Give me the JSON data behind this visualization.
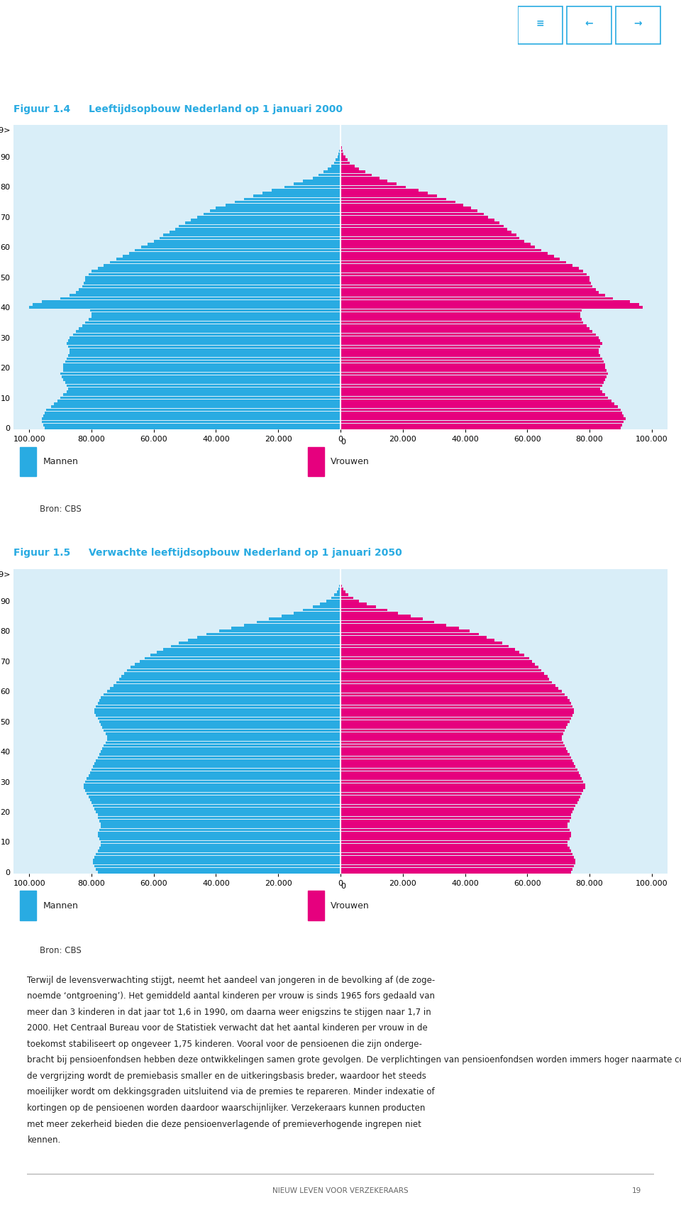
{
  "fig1_title_label": "Figuur 1.4",
  "fig1_title_text": "Leeftijdsopbouw Nederland op 1 januari 2000",
  "fig2_title_label": "Figuur 1.5",
  "fig2_title_text": "Verwachte leeftijdsopbouw Nederland op 1 januari 2050",
  "legend_mannen": "Mannen",
  "legend_vrouwen": "Vrouwen",
  "source_text": "Bron: CBS",
  "color_mannen": "#29ABE2",
  "color_vrouwen": "#E6007E",
  "color_bg": "#D9EEF8",
  "color_title": "#29ABE2",
  "xmax": 105000,
  "yticks": [
    0,
    10,
    20,
    30,
    40,
    50,
    60,
    70,
    80,
    90,
    99
  ],
  "ytick_label_99": "99>",
  "ages": [
    0,
    1,
    2,
    3,
    4,
    5,
    6,
    7,
    8,
    9,
    10,
    11,
    12,
    13,
    14,
    15,
    16,
    17,
    18,
    19,
    20,
    21,
    22,
    23,
    24,
    25,
    26,
    27,
    28,
    29,
    30,
    31,
    32,
    33,
    34,
    35,
    36,
    37,
    38,
    39,
    40,
    41,
    42,
    43,
    44,
    45,
    46,
    47,
    48,
    49,
    50,
    51,
    52,
    53,
    54,
    55,
    56,
    57,
    58,
    59,
    60,
    61,
    62,
    63,
    64,
    65,
    66,
    67,
    68,
    69,
    70,
    71,
    72,
    73,
    74,
    75,
    76,
    77,
    78,
    79,
    80,
    81,
    82,
    83,
    84,
    85,
    86,
    87,
    88,
    89,
    90,
    91,
    92,
    93,
    94,
    95,
    96,
    97,
    98,
    99
  ],
  "men_2000": [
    95000,
    95500,
    96000,
    96000,
    95500,
    95000,
    94500,
    93000,
    92000,
    91000,
    90000,
    89000,
    88000,
    87500,
    88000,
    88500,
    89000,
    89500,
    90000,
    89000,
    89000,
    89000,
    88500,
    88000,
    87500,
    87000,
    87000,
    87500,
    88000,
    87500,
    87000,
    86000,
    85000,
    84000,
    83000,
    82000,
    81000,
    80000,
    80000,
    80500,
    100000,
    99000,
    96000,
    90000,
    87000,
    85000,
    84000,
    83000,
    82500,
    82000,
    82000,
    81000,
    80000,
    78000,
    76000,
    74000,
    72000,
    70000,
    68000,
    66000,
    64000,
    62000,
    60000,
    58000,
    57000,
    55000,
    53000,
    52000,
    50000,
    48000,
    46000,
    44000,
    42000,
    40000,
    37000,
    34000,
    31000,
    28000,
    25000,
    22000,
    18000,
    15000,
    12000,
    9000,
    7000,
    5500,
    4000,
    3000,
    2000,
    1500,
    1000,
    700,
    500,
    300,
    200,
    100,
    60,
    30,
    15,
    5
  ],
  "women_2000": [
    90000,
    90500,
    91000,
    91500,
    91000,
    90500,
    90000,
    89000,
    88000,
    87000,
    86000,
    85000,
    84000,
    83500,
    84000,
    84500,
    85000,
    85500,
    86000,
    85500,
    85000,
    85000,
    84500,
    84000,
    83500,
    83000,
    83000,
    83500,
    84000,
    83500,
    83000,
    82000,
    81000,
    80000,
    79000,
    78000,
    77500,
    77000,
    77000,
    77500,
    97000,
    96000,
    93000,
    87500,
    85000,
    83000,
    82000,
    81000,
    80500,
    80000,
    80000,
    79000,
    78000,
    76500,
    74500,
    72500,
    70500,
    68500,
    66500,
    64500,
    62500,
    61000,
    59000,
    57500,
    56500,
    55000,
    53500,
    52500,
    51000,
    49500,
    47500,
    46000,
    44000,
    42000,
    39500,
    37000,
    34000,
    31000,
    28000,
    25000,
    21000,
    18000,
    15000,
    12500,
    10000,
    8000,
    6000,
    4500,
    3000,
    2200,
    1500,
    1000,
    700,
    450,
    280,
    150,
    80,
    40,
    18,
    6
  ],
  "men_2050": [
    78000,
    78500,
    79000,
    79500,
    79500,
    79000,
    78500,
    78000,
    77500,
    77000,
    77000,
    77500,
    78000,
    78000,
    77500,
    77000,
    77000,
    77500,
    78000,
    78000,
    78500,
    79000,
    79500,
    80000,
    80500,
    81000,
    81500,
    82000,
    82500,
    82500,
    82000,
    81500,
    81000,
    80500,
    80000,
    79500,
    79000,
    78500,
    78000,
    77500,
    77000,
    76500,
    76000,
    75500,
    75000,
    75000,
    75500,
    76000,
    76500,
    77000,
    77500,
    78000,
    78500,
    79000,
    79000,
    78500,
    78000,
    77500,
    77000,
    76000,
    75000,
    74000,
    73000,
    72000,
    71000,
    70500,
    69500,
    68500,
    67500,
    66000,
    64500,
    63000,
    61000,
    59000,
    57000,
    54500,
    52000,
    49000,
    46000,
    43000,
    39000,
    35000,
    31000,
    27000,
    23000,
    19000,
    15000,
    12000,
    9000,
    6500,
    4500,
    3000,
    2000,
    1200,
    700,
    400,
    200,
    100,
    40,
    15
  ],
  "women_2050": [
    74000,
    74500,
    75000,
    75500,
    75500,
    75000,
    74500,
    74000,
    73500,
    73000,
    73000,
    73500,
    74000,
    74000,
    73500,
    73000,
    73000,
    73500,
    74000,
    74000,
    74500,
    75000,
    75500,
    76000,
    76500,
    77000,
    77500,
    78000,
    78500,
    78500,
    78000,
    77500,
    77000,
    76500,
    76000,
    75500,
    75000,
    74500,
    74000,
    73500,
    73000,
    72500,
    72000,
    71500,
    71000,
    71000,
    71500,
    72000,
    72500,
    73000,
    73500,
    74000,
    74500,
    75000,
    75000,
    74500,
    74000,
    73500,
    73000,
    72000,
    71000,
    70000,
    69000,
    68000,
    67000,
    66500,
    65500,
    64500,
    63500,
    62500,
    61500,
    60500,
    59000,
    57500,
    56000,
    54000,
    52000,
    49500,
    47000,
    44500,
    41500,
    38000,
    34000,
    30000,
    26500,
    22500,
    18500,
    15000,
    11500,
    8500,
    6000,
    4000,
    2600,
    1600,
    950,
    550,
    280,
    130,
    55,
    20
  ],
  "body_lines": [
    "Terwijl de levensverwachting stijgt, neemt het aandeel van jongeren in de bevolking af (de zoge-",
    "noemde ‘ontgroening’). Het gemiddeld aantal kinderen per vrouw is sinds 1965 fors gedaald van",
    "meer dan 3 kinderen in dat jaar tot 1,6 in 1990, om daarna weer enigszins te stijgen naar 1,7 in",
    "2000. Het Centraal Bureau voor de Statistiek verwacht dat het aantal kinderen per vrouw in de",
    "toekomst stabiliseert op ongeveer 1,75 kinderen. Vooral voor de pensioenen die zijn onderge-",
    "bracht bij pensioenfondsen hebben deze ontwikkelingen samen grote gevolgen. De verplichtingen van pensioenfondsen worden immers hoger naarmate cohorten langer blijven leven. Door",
    "de vergrijzing wordt de premiebasis smaller en de uitkeringsbasis breder, waardoor het steeds",
    "moeilijker wordt om dekkingsgraden uitsluitend via de premies te repareren. Minder indexatie of",
    "kortingen op de pensioenen worden daardoor waarschijnlijker. Verzekeraars kunnen producten",
    "met meer zekerheid bieden die deze pensioenverlagende of premieverhogende ingrepen niet",
    "kennen."
  ],
  "footer_text": "NIEUW LEVEN VOOR VERZEKERAARS",
  "footer_page": "19"
}
